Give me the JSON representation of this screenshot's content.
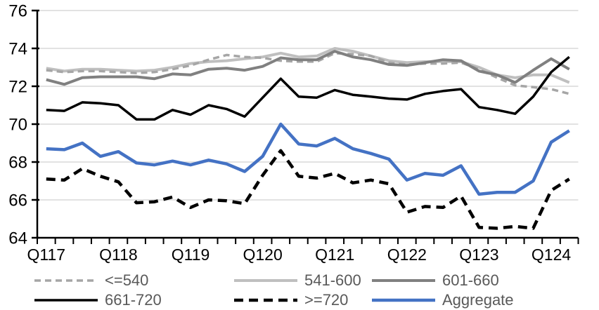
{
  "chart_data": {
    "type": "line",
    "title": "",
    "categories": [
      "Q1 2017",
      "Q2 2017",
      "Q3 2017",
      "Q4 2017",
      "Q1 2018",
      "Q2 2018",
      "Q3 2018",
      "Q4 2018",
      "Q1 2019",
      "Q2 2019",
      "Q3 2019",
      "Q4 2019",
      "Q1 2020",
      "Q2 2020",
      "Q3 2020",
      "Q4 2020",
      "Q1 2021",
      "Q2 2021",
      "Q3 2021",
      "Q4 2021",
      "Q1 2022",
      "Q2 2022",
      "Q3 2022",
      "Q4 2022",
      "Q1 2023",
      "Q2 2023",
      "Q3 2023",
      "Q4 2023",
      "Q1 2024",
      "Q2 2024"
    ],
    "x_axis_tick_labels": [
      "Q117",
      "Q118",
      "Q119",
      "Q120",
      "Q121",
      "Q122",
      "Q123",
      "Q124"
    ],
    "y_ticks": [
      64,
      66,
      68,
      70,
      72,
      74,
      76
    ],
    "ylim": [
      64,
      76
    ],
    "grid": true,
    "legend_position": "bottom",
    "colors": {
      "grid": "#d9d9d9",
      "axis": "#000000",
      "tick_labels": "#000000",
      "legend_text": "#595959",
      "background": "#ffffff"
    },
    "series": [
      {
        "name": "<=540",
        "color": "#a6a6a6",
        "line_style": "dashed",
        "width": 3.5,
        "values": [
          72.85,
          72.75,
          72.8,
          72.8,
          72.75,
          72.7,
          72.75,
          72.9,
          73.1,
          73.4,
          73.65,
          73.55,
          73.5,
          73.35,
          73.3,
          73.3,
          73.75,
          73.7,
          73.6,
          73.25,
          73.15,
          73.2,
          73.2,
          73.25,
          72.9,
          72.45,
          72.05,
          71.95,
          71.85,
          71.6
        ]
      },
      {
        "name": "541-600",
        "color": "#bfbfbf",
        "line_style": "solid",
        "width": 4,
        "values": [
          72.95,
          72.8,
          72.9,
          72.9,
          72.85,
          72.8,
          72.85,
          73.0,
          73.2,
          73.3,
          73.35,
          73.45,
          73.55,
          73.75,
          73.55,
          73.6,
          74.0,
          73.85,
          73.6,
          73.35,
          73.25,
          73.3,
          73.3,
          73.3,
          73.0,
          72.6,
          72.45,
          72.6,
          72.6,
          72.2
        ]
      },
      {
        "name": "601-660",
        "color": "#808080",
        "line_style": "solid",
        "width": 4,
        "values": [
          72.35,
          72.1,
          72.45,
          72.5,
          72.5,
          72.5,
          72.4,
          72.65,
          72.6,
          72.9,
          72.95,
          72.85,
          73.05,
          73.5,
          73.4,
          73.4,
          73.85,
          73.55,
          73.4,
          73.15,
          73.1,
          73.25,
          73.4,
          73.35,
          72.8,
          72.6,
          72.2,
          72.85,
          73.45,
          72.9
        ]
      },
      {
        "name": "661-720",
        "color": "#000000",
        "line_style": "solid",
        "width": 3.5,
        "values": [
          70.75,
          70.7,
          71.15,
          71.1,
          71.0,
          70.25,
          70.25,
          70.75,
          70.5,
          71.0,
          70.8,
          70.4,
          71.4,
          72.4,
          71.45,
          71.4,
          71.8,
          71.55,
          71.45,
          71.35,
          71.3,
          71.6,
          71.75,
          71.85,
          70.9,
          70.75,
          70.55,
          71.45,
          72.75,
          73.55
        ]
      },
      {
        "name": ">=720",
        "color": "#000000",
        "line_style": "dashed",
        "width": 4.5,
        "values": [
          67.1,
          67.05,
          67.65,
          67.25,
          66.95,
          65.85,
          65.9,
          66.15,
          65.6,
          66.0,
          65.95,
          65.8,
          67.3,
          68.6,
          67.25,
          67.15,
          67.4,
          66.9,
          67.05,
          66.85,
          65.35,
          65.65,
          65.6,
          66.2,
          64.55,
          64.5,
          64.6,
          64.5,
          66.5,
          67.1
        ]
      },
      {
        "name": "Aggregate",
        "color": "#4472c4",
        "line_style": "solid",
        "width": 4.5,
        "values": [
          68.7,
          68.65,
          69.0,
          68.3,
          68.55,
          67.95,
          67.85,
          68.05,
          67.85,
          68.1,
          67.9,
          67.5,
          68.3,
          70.0,
          68.95,
          68.85,
          69.25,
          68.7,
          68.45,
          68.15,
          67.05,
          67.4,
          67.3,
          67.8,
          66.3,
          66.4,
          66.4,
          67.0,
          69.05,
          69.65
        ]
      }
    ]
  }
}
